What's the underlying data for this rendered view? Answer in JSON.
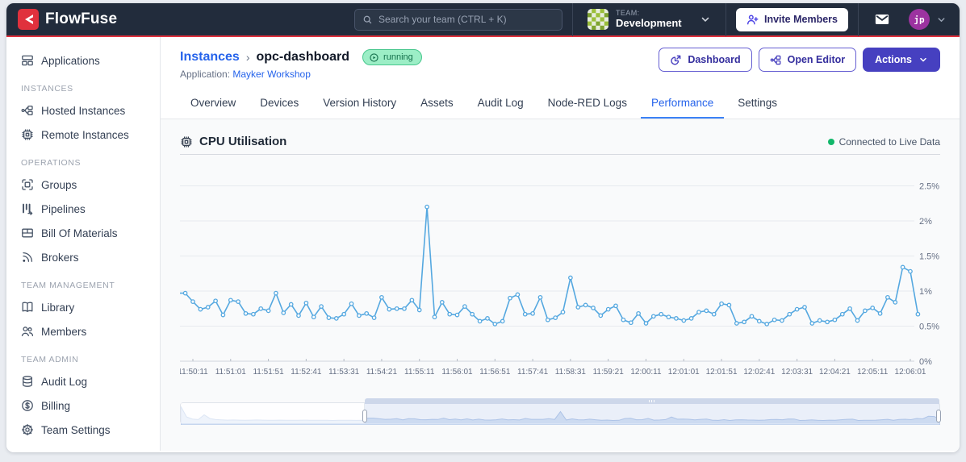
{
  "colors": {
    "brand_red": "#e0313d",
    "navbar_bg": "#222c3c",
    "accent_indigo": "#4640c0",
    "link_blue": "#2563eb",
    "active_tab_blue": "#3b82f6",
    "chart_line": "#55a8e0",
    "live_dot_green": "#12b76a",
    "running_badge_green": "#9ceec6"
  },
  "navbar": {
    "logo_text": "FlowFuse",
    "search": {
      "placeholder": "Search your team (CTRL + K)"
    },
    "team": {
      "label": "TEAM:",
      "name": "Development"
    },
    "invite_label": "Invite Members",
    "avatar_initials": "jp"
  },
  "sidebar": {
    "sections": [
      {
        "header": "",
        "items": [
          {
            "label": "Applications",
            "icon": "applications-icon"
          }
        ]
      },
      {
        "header": "INSTANCES",
        "items": [
          {
            "label": "Hosted Instances",
            "icon": "hosted-instances-icon"
          },
          {
            "label": "Remote Instances",
            "icon": "remote-instances-icon"
          }
        ]
      },
      {
        "header": "OPERATIONS",
        "items": [
          {
            "label": "Groups",
            "icon": "groups-icon"
          },
          {
            "label": "Pipelines",
            "icon": "pipelines-icon"
          },
          {
            "label": "Bill Of Materials",
            "icon": "bill-of-materials-icon"
          },
          {
            "label": "Brokers",
            "icon": "brokers-icon"
          }
        ]
      },
      {
        "header": "TEAM MANAGEMENT",
        "items": [
          {
            "label": "Library",
            "icon": "library-icon"
          },
          {
            "label": "Members",
            "icon": "members-icon"
          }
        ]
      },
      {
        "header": "TEAM ADMIN",
        "items": [
          {
            "label": "Audit Log",
            "icon": "audit-log-icon"
          },
          {
            "label": "Billing",
            "icon": "billing-icon"
          },
          {
            "label": "Team Settings",
            "icon": "gear-icon"
          }
        ]
      }
    ]
  },
  "header": {
    "breadcrumb": {
      "parent": "Instances",
      "separator": "›",
      "current": "opc-dashboard"
    },
    "status_badge": "running",
    "application_label": "Application:",
    "application_name": "Mayker Workshop",
    "buttons": {
      "dashboard": "Dashboard",
      "open_editor": "Open Editor",
      "actions": "Actions"
    }
  },
  "tabs": {
    "items": [
      "Overview",
      "Devices",
      "Version History",
      "Assets",
      "Audit Log",
      "Node-RED Logs",
      "Performance",
      "Settings"
    ],
    "active": "Performance"
  },
  "performance": {
    "title": "CPU Utilisation",
    "live_status": "Connected to Live Data"
  },
  "chart_data": {
    "type": "line",
    "title": "CPU Utilisation",
    "unit": "%",
    "grid": true,
    "legend": "none",
    "y_ticks": [
      "0%",
      "0.5%",
      "1%",
      "1.5%",
      "2%",
      "2.5%"
    ],
    "ylim": [
      0,
      2.5
    ],
    "x_tick_labels": [
      "11:50:11",
      "11:51:01",
      "11:51:51",
      "11:52:41",
      "11:53:31",
      "11:54:21",
      "11:55:11",
      "11:56:01",
      "11:56:51",
      "11:57:41",
      "11:58:31",
      "11:59:21",
      "12:00:11",
      "12:01:01",
      "12:01:51",
      "12:02:41",
      "12:03:31",
      "12:04:21",
      "12:05:11",
      "12:06:01"
    ],
    "x_start": "11:49:51",
    "x_interval_seconds": 10,
    "values": [
      0.97,
      0.97,
      0.85,
      0.74,
      0.77,
      0.86,
      0.66,
      0.87,
      0.85,
      0.68,
      0.67,
      0.75,
      0.72,
      0.97,
      0.69,
      0.81,
      0.65,
      0.83,
      0.63,
      0.78,
      0.62,
      0.61,
      0.67,
      0.82,
      0.65,
      0.68,
      0.62,
      0.91,
      0.74,
      0.75,
      0.75,
      0.87,
      0.73,
      2.2,
      0.63,
      0.84,
      0.67,
      0.66,
      0.78,
      0.67,
      0.57,
      0.61,
      0.53,
      0.57,
      0.9,
      0.95,
      0.67,
      0.68,
      0.91,
      0.59,
      0.62,
      0.7,
      1.19,
      0.77,
      0.8,
      0.76,
      0.65,
      0.74,
      0.79,
      0.59,
      0.55,
      0.68,
      0.54,
      0.64,
      0.67,
      0.63,
      0.61,
      0.58,
      0.61,
      0.7,
      0.72,
      0.67,
      0.82,
      0.8,
      0.54,
      0.56,
      0.64,
      0.57,
      0.53,
      0.59,
      0.58,
      0.67,
      0.74,
      0.77,
      0.54,
      0.58,
      0.56,
      0.59,
      0.67,
      0.75,
      0.58,
      0.72,
      0.76,
      0.68,
      0.91,
      0.84,
      1.34,
      1.28,
      0.67
    ]
  },
  "minimap": {
    "selection_start_pct": 24.3,
    "selection_end_pct": 100,
    "preamble_values": [
      3.2,
      1.2,
      0.8,
      0.7,
      1.6,
      0.9,
      0.7,
      0.65,
      0.6,
      0.62,
      0.6,
      0.58,
      0.6,
      0.62,
      0.6,
      0.58,
      0.56,
      0.6,
      0.58,
      0.56,
      0.58,
      0.6,
      0.58,
      0.56,
      0.58,
      0.56,
      0.54,
      0.56,
      0.58,
      0.56,
      0.55,
      0.57
    ]
  }
}
